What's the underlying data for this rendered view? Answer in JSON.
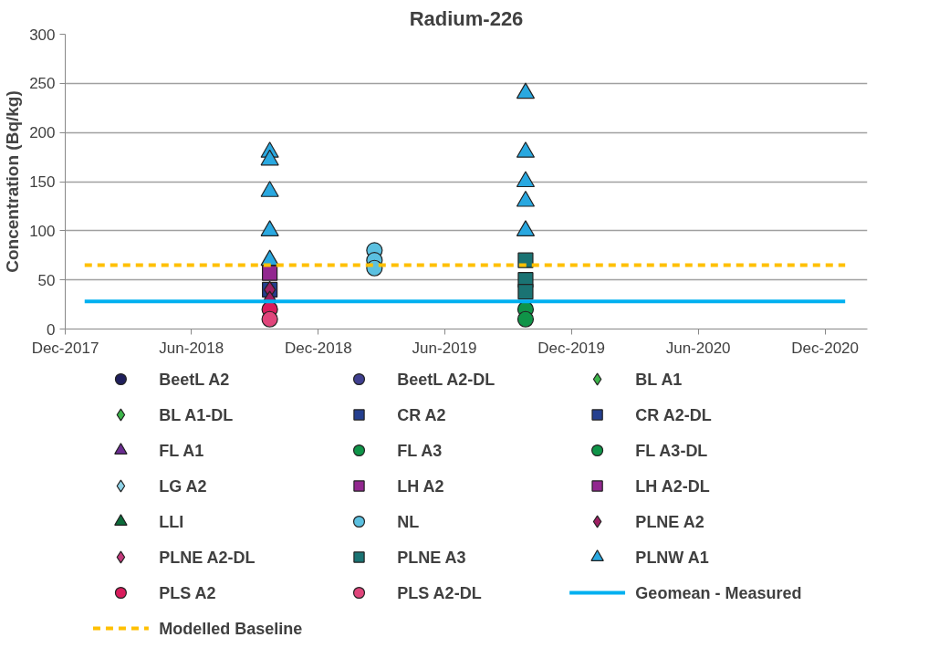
{
  "chart_data": {
    "type": "scatter",
    "title": "Radium-226",
    "ylabel": "Concentration (Bq/kg)",
    "xlim": [
      "2017-12-01",
      "2021-01-31"
    ],
    "xticks": [
      {
        "value": "2017-12-01",
        "label": "Dec-2017"
      },
      {
        "value": "2018-06-01",
        "label": "Jun-2018"
      },
      {
        "value": "2018-12-01",
        "label": "Dec-2018"
      },
      {
        "value": "2019-06-01",
        "label": "Jun-2019"
      },
      {
        "value": "2019-12-01",
        "label": "Dec-2019"
      },
      {
        "value": "2020-06-01",
        "label": "Jun-2020"
      },
      {
        "value": "2020-12-01",
        "label": "Dec-2020"
      }
    ],
    "ylim": [
      0,
      300
    ],
    "yticks": [
      0,
      50,
      100,
      150,
      200,
      250,
      300
    ],
    "grid": "y",
    "legend": "bottom",
    "series": [
      {
        "name": "BeetL A2",
        "color": "#1f1f5c",
        "marker": "circle"
      },
      {
        "name": "BeetL A2-DL",
        "color": "#3f3f8f",
        "marker": "circle"
      },
      {
        "name": "BL A1",
        "color": "#3cb54a",
        "marker": "diamond"
      },
      {
        "name": "BL A1-DL",
        "color": "#3cb54a",
        "marker": "diamond"
      },
      {
        "name": "CR A2",
        "color": "#243f8f",
        "marker": "square",
        "x": [
          "2018-09-22"
        ],
        "values": [
          40
        ]
      },
      {
        "name": "CR A2-DL",
        "color": "#243f8f",
        "marker": "square"
      },
      {
        "name": "FL A1",
        "color": "#6a2c91",
        "marker": "triangle"
      },
      {
        "name": "FL A3",
        "color": "#0f9448",
        "marker": "circle",
        "x": [
          "2019-09-26"
        ],
        "values": [
          20
        ]
      },
      {
        "name": "FL A3-DL",
        "color": "#0f9448",
        "marker": "circle",
        "x": [
          "2019-09-26"
        ],
        "values": [
          10
        ]
      },
      {
        "name": "LG A2",
        "color": "#8fd3e8",
        "marker": "diamond"
      },
      {
        "name": "LH A2",
        "color": "#92278f",
        "marker": "square",
        "x": [
          "2018-09-22"
        ],
        "values": [
          57
        ]
      },
      {
        "name": "LH A2-DL",
        "color": "#92278f",
        "marker": "square"
      },
      {
        "name": "LLI",
        "color": "#0b6b3a",
        "marker": "triangle"
      },
      {
        "name": "NL",
        "color": "#5bc0e0",
        "marker": "circle",
        "x": [
          "2019-02-20",
          "2019-02-20",
          "2019-02-20"
        ],
        "values": [
          80,
          70,
          62
        ]
      },
      {
        "name": "PLNE A2",
        "color": "#9e1f63",
        "marker": "diamond",
        "x": [
          "2018-09-22",
          "2018-09-22"
        ],
        "values": [
          40,
          30
        ]
      },
      {
        "name": "PLNE A2-DL",
        "color": "#c2387a",
        "marker": "diamond"
      },
      {
        "name": "PLNE A3",
        "color": "#1a7373",
        "marker": "square",
        "x": [
          "2019-09-26",
          "2019-09-26",
          "2019-09-26"
        ],
        "values": [
          70,
          50,
          38
        ]
      },
      {
        "name": "PLNW A1",
        "color": "#29a8e0",
        "marker": "triangle",
        "x": [
          "2018-09-22",
          "2018-09-22",
          "2018-09-22",
          "2018-09-22",
          "2018-09-22",
          "2019-09-26",
          "2019-09-26",
          "2019-09-26",
          "2019-09-26",
          "2019-09-26"
        ],
        "values": [
          180,
          172,
          140,
          100,
          70,
          240,
          180,
          150,
          130,
          100
        ]
      },
      {
        "name": "PLS A2",
        "color": "#d91c5c",
        "marker": "circle",
        "x": [
          "2018-09-22"
        ],
        "values": [
          20
        ]
      },
      {
        "name": "PLS A2-DL",
        "color": "#e0457b",
        "marker": "circle",
        "x": [
          "2018-09-22"
        ],
        "values": [
          10
        ]
      },
      {
        "name": "Geomean - Measured",
        "type": "line",
        "color": "#00b0f0",
        "line_style": "solid",
        "x": [
          "2017-12-29",
          "2020-12-30"
        ],
        "values": [
          28,
          28
        ]
      },
      {
        "name": "Modelled Baseline",
        "type": "line",
        "color": "#ffc000",
        "line_style": "dashed",
        "x": [
          "2017-12-29",
          "2020-12-30"
        ],
        "values": [
          65,
          65
        ]
      }
    ]
  }
}
